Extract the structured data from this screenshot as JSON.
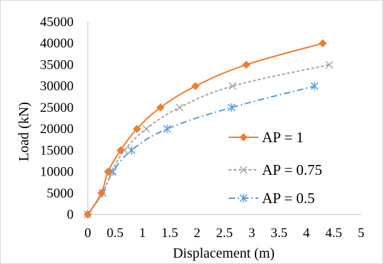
{
  "chart_data": {
    "type": "line",
    "xlabel": "Displacement (m)",
    "ylabel": "Load (kN)",
    "xlim": [
      0,
      5
    ],
    "ylim": [
      0,
      45000
    ],
    "xticks": [
      "0",
      "0.5",
      "1",
      "1.5",
      "2",
      "2.5",
      "3",
      "3.5",
      "4",
      "4.5",
      "5"
    ],
    "yticks": [
      "0",
      "5000",
      "10000",
      "15000",
      "20000",
      "25000",
      "30000",
      "35000",
      "40000",
      "45000"
    ],
    "grid": false,
    "legend_position": "right",
    "series": [
      {
        "name": "AP = 1",
        "color": "#ED7D31",
        "line_style": "solid",
        "marker": "diamond",
        "x": [
          0,
          0.25,
          0.37,
          0.6,
          0.9,
          1.33,
          1.97,
          2.9,
          4.3
        ],
        "y": [
          0,
          5000,
          10000,
          15000,
          20000,
          25000,
          30000,
          35000,
          40000
        ]
      },
      {
        "name": "AP = 0.75",
        "color": "#A5A5A5",
        "line_style": "dashed",
        "marker": "x",
        "x": [
          0,
          0.27,
          0.44,
          0.67,
          1.07,
          1.68,
          2.65,
          4.42
        ],
        "y": [
          0,
          5000,
          10000,
          15000,
          20000,
          25000,
          30000,
          35000
        ]
      },
      {
        "name": "AP = 0.5",
        "color": "#5B9BD5",
        "line_style": "dashdot",
        "marker": "asterisk",
        "x": [
          0,
          0.27,
          0.46,
          0.8,
          1.45,
          2.63,
          4.15
        ],
        "y": [
          0,
          5000,
          10000,
          15000,
          20000,
          25000,
          30000
        ]
      }
    ]
  }
}
